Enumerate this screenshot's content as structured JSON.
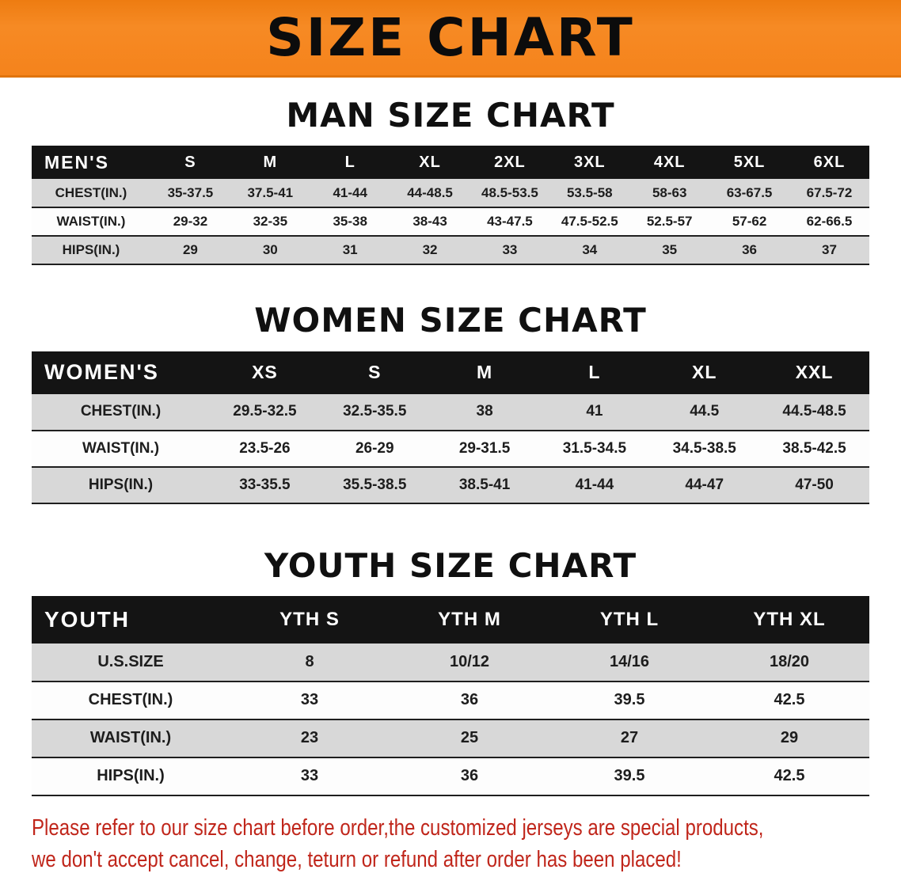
{
  "banner": {
    "title": "SIZE CHART"
  },
  "chart_data": [
    {
      "type": "table",
      "title": "MAN SIZE CHART",
      "columns": [
        "MEN'S",
        "S",
        "M",
        "L",
        "XL",
        "2XL",
        "3XL",
        "4XL",
        "5XL",
        "6XL"
      ],
      "rows": [
        [
          "CHEST(IN.)",
          "35-37.5",
          "37.5-41",
          "41-44",
          "44-48.5",
          "48.5-53.5",
          "53.5-58",
          "58-63",
          "63-67.5",
          "67.5-72"
        ],
        [
          "WAIST(IN.)",
          "29-32",
          "32-35",
          "35-38",
          "38-43",
          "43-47.5",
          "47.5-52.5",
          "52.5-57",
          "57-62",
          "62-66.5"
        ],
        [
          "HIPS(IN.)",
          "29",
          "30",
          "31",
          "32",
          "33",
          "34",
          "35",
          "36",
          "37"
        ]
      ]
    },
    {
      "type": "table",
      "title": "WOMEN SIZE CHART",
      "columns": [
        "WOMEN'S",
        "XS",
        "S",
        "M",
        "L",
        "XL",
        "XXL"
      ],
      "rows": [
        [
          "CHEST(IN.)",
          "29.5-32.5",
          "32.5-35.5",
          "38",
          "41",
          "44.5",
          "44.5-48.5"
        ],
        [
          "WAIST(IN.)",
          "23.5-26",
          "26-29",
          "29-31.5",
          "31.5-34.5",
          "34.5-38.5",
          "38.5-42.5"
        ],
        [
          "HIPS(IN.)",
          "33-35.5",
          "35.5-38.5",
          "38.5-41",
          "41-44",
          "44-47",
          "47-50"
        ]
      ]
    },
    {
      "type": "table",
      "title": "YOUTH SIZE CHART",
      "columns": [
        "YOUTH",
        "YTH S",
        "YTH M",
        "YTH L",
        "YTH XL"
      ],
      "rows": [
        [
          "U.S.SIZE",
          "8",
          "10/12",
          "14/16",
          "18/20"
        ],
        [
          "CHEST(IN.)",
          "33",
          "36",
          "39.5",
          "42.5"
        ],
        [
          "WAIST(IN.)",
          "23",
          "25",
          "27",
          "29"
        ],
        [
          "HIPS(IN.)",
          "33",
          "36",
          "39.5",
          "42.5"
        ]
      ]
    }
  ],
  "footer": {
    "line1": "Please refer to our size chart before order,the customized jerseys are special products,",
    "line2": "we don't accept cancel, change, teturn or refund after order has been placed!"
  },
  "colors": {
    "banner_orange": "#f5831c",
    "header_black": "#141414",
    "row_gray": "#d8d8d8",
    "row_white": "#fdfdfd",
    "note_red": "#c0261b"
  }
}
